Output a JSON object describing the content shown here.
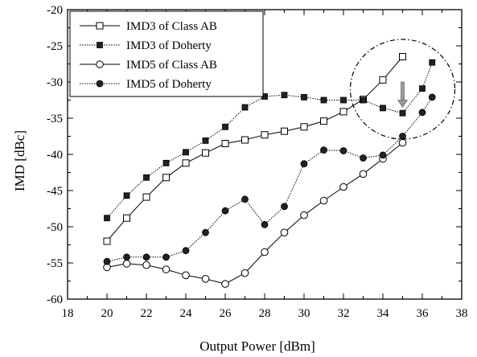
{
  "chart_data": {
    "type": "line",
    "xlabel": "Output Power [dBm]",
    "ylabel": "IMD [dBc]",
    "xlim": [
      18,
      38
    ],
    "ylim": [
      -60,
      -20
    ],
    "xticks": [
      18,
      20,
      22,
      24,
      26,
      28,
      30,
      32,
      34,
      36,
      38
    ],
    "yticks": [
      -60,
      -55,
      -50,
      -45,
      -40,
      -35,
      -30,
      -25,
      -20
    ],
    "grid": false,
    "legend_position": "top-left",
    "series": [
      {
        "name": "IMD3 of Class AB",
        "marker": "open-square",
        "line": "solid",
        "x": [
          20,
          21,
          22,
          23,
          24,
          25,
          26,
          27,
          28,
          29,
          30,
          31,
          32,
          33,
          34,
          35
        ],
        "y": [
          -52.0,
          -48.8,
          -45.9,
          -43.2,
          -41.2,
          -39.8,
          -38.5,
          -38.0,
          -37.3,
          -36.8,
          -36.2,
          -35.4,
          -34.1,
          -32.4,
          -29.7,
          -26.5
        ]
      },
      {
        "name": "IMD3 of Doherty",
        "marker": "filled-square",
        "line": "dotted",
        "x": [
          20,
          21,
          22,
          23,
          24,
          25,
          26,
          27,
          28,
          29,
          30,
          31,
          32,
          33,
          34,
          35,
          36,
          36.5
        ],
        "y": [
          -48.8,
          -45.7,
          -43.2,
          -41.2,
          -39.7,
          -38.1,
          -36.2,
          -33.5,
          -32.0,
          -31.8,
          -32.1,
          -32.5,
          -32.5,
          -32.5,
          -33.6,
          -34.3,
          -30.9,
          -27.3
        ]
      },
      {
        "name": "IMD5 of Class AB",
        "marker": "open-circle",
        "line": "solid",
        "x": [
          20,
          21,
          22,
          23,
          24,
          25,
          26,
          27,
          28,
          29,
          30,
          31,
          32,
          33,
          34,
          35
        ],
        "y": [
          -55.6,
          -55.1,
          -55.3,
          -55.9,
          -56.7,
          -57.2,
          -57.9,
          -56.4,
          -53.5,
          -50.8,
          -48.4,
          -46.4,
          -44.5,
          -42.7,
          -40.6,
          -38.4
        ]
      },
      {
        "name": "IMD5 of Doherty",
        "marker": "filled-circle",
        "line": "dotted",
        "x": [
          20,
          21,
          22,
          23,
          24,
          25,
          26,
          27,
          28,
          29,
          30,
          31,
          32,
          33,
          34,
          35,
          36,
          36.5
        ],
        "y": [
          -54.8,
          -54.2,
          -54.2,
          -54.2,
          -53.3,
          -50.8,
          -47.8,
          -46.2,
          -49.7,
          -47.2,
          -41.3,
          -39.4,
          -39.5,
          -40.5,
          -40.1,
          -37.5,
          -34.2,
          -32.1
        ]
      }
    ],
    "annotations": [
      {
        "type": "dashed-circle",
        "center": [
          35,
          -31
        ],
        "note": ""
      },
      {
        "type": "arrow-down",
        "x": 35,
        "y_from": -30,
        "y_to": -33.5
      }
    ]
  }
}
